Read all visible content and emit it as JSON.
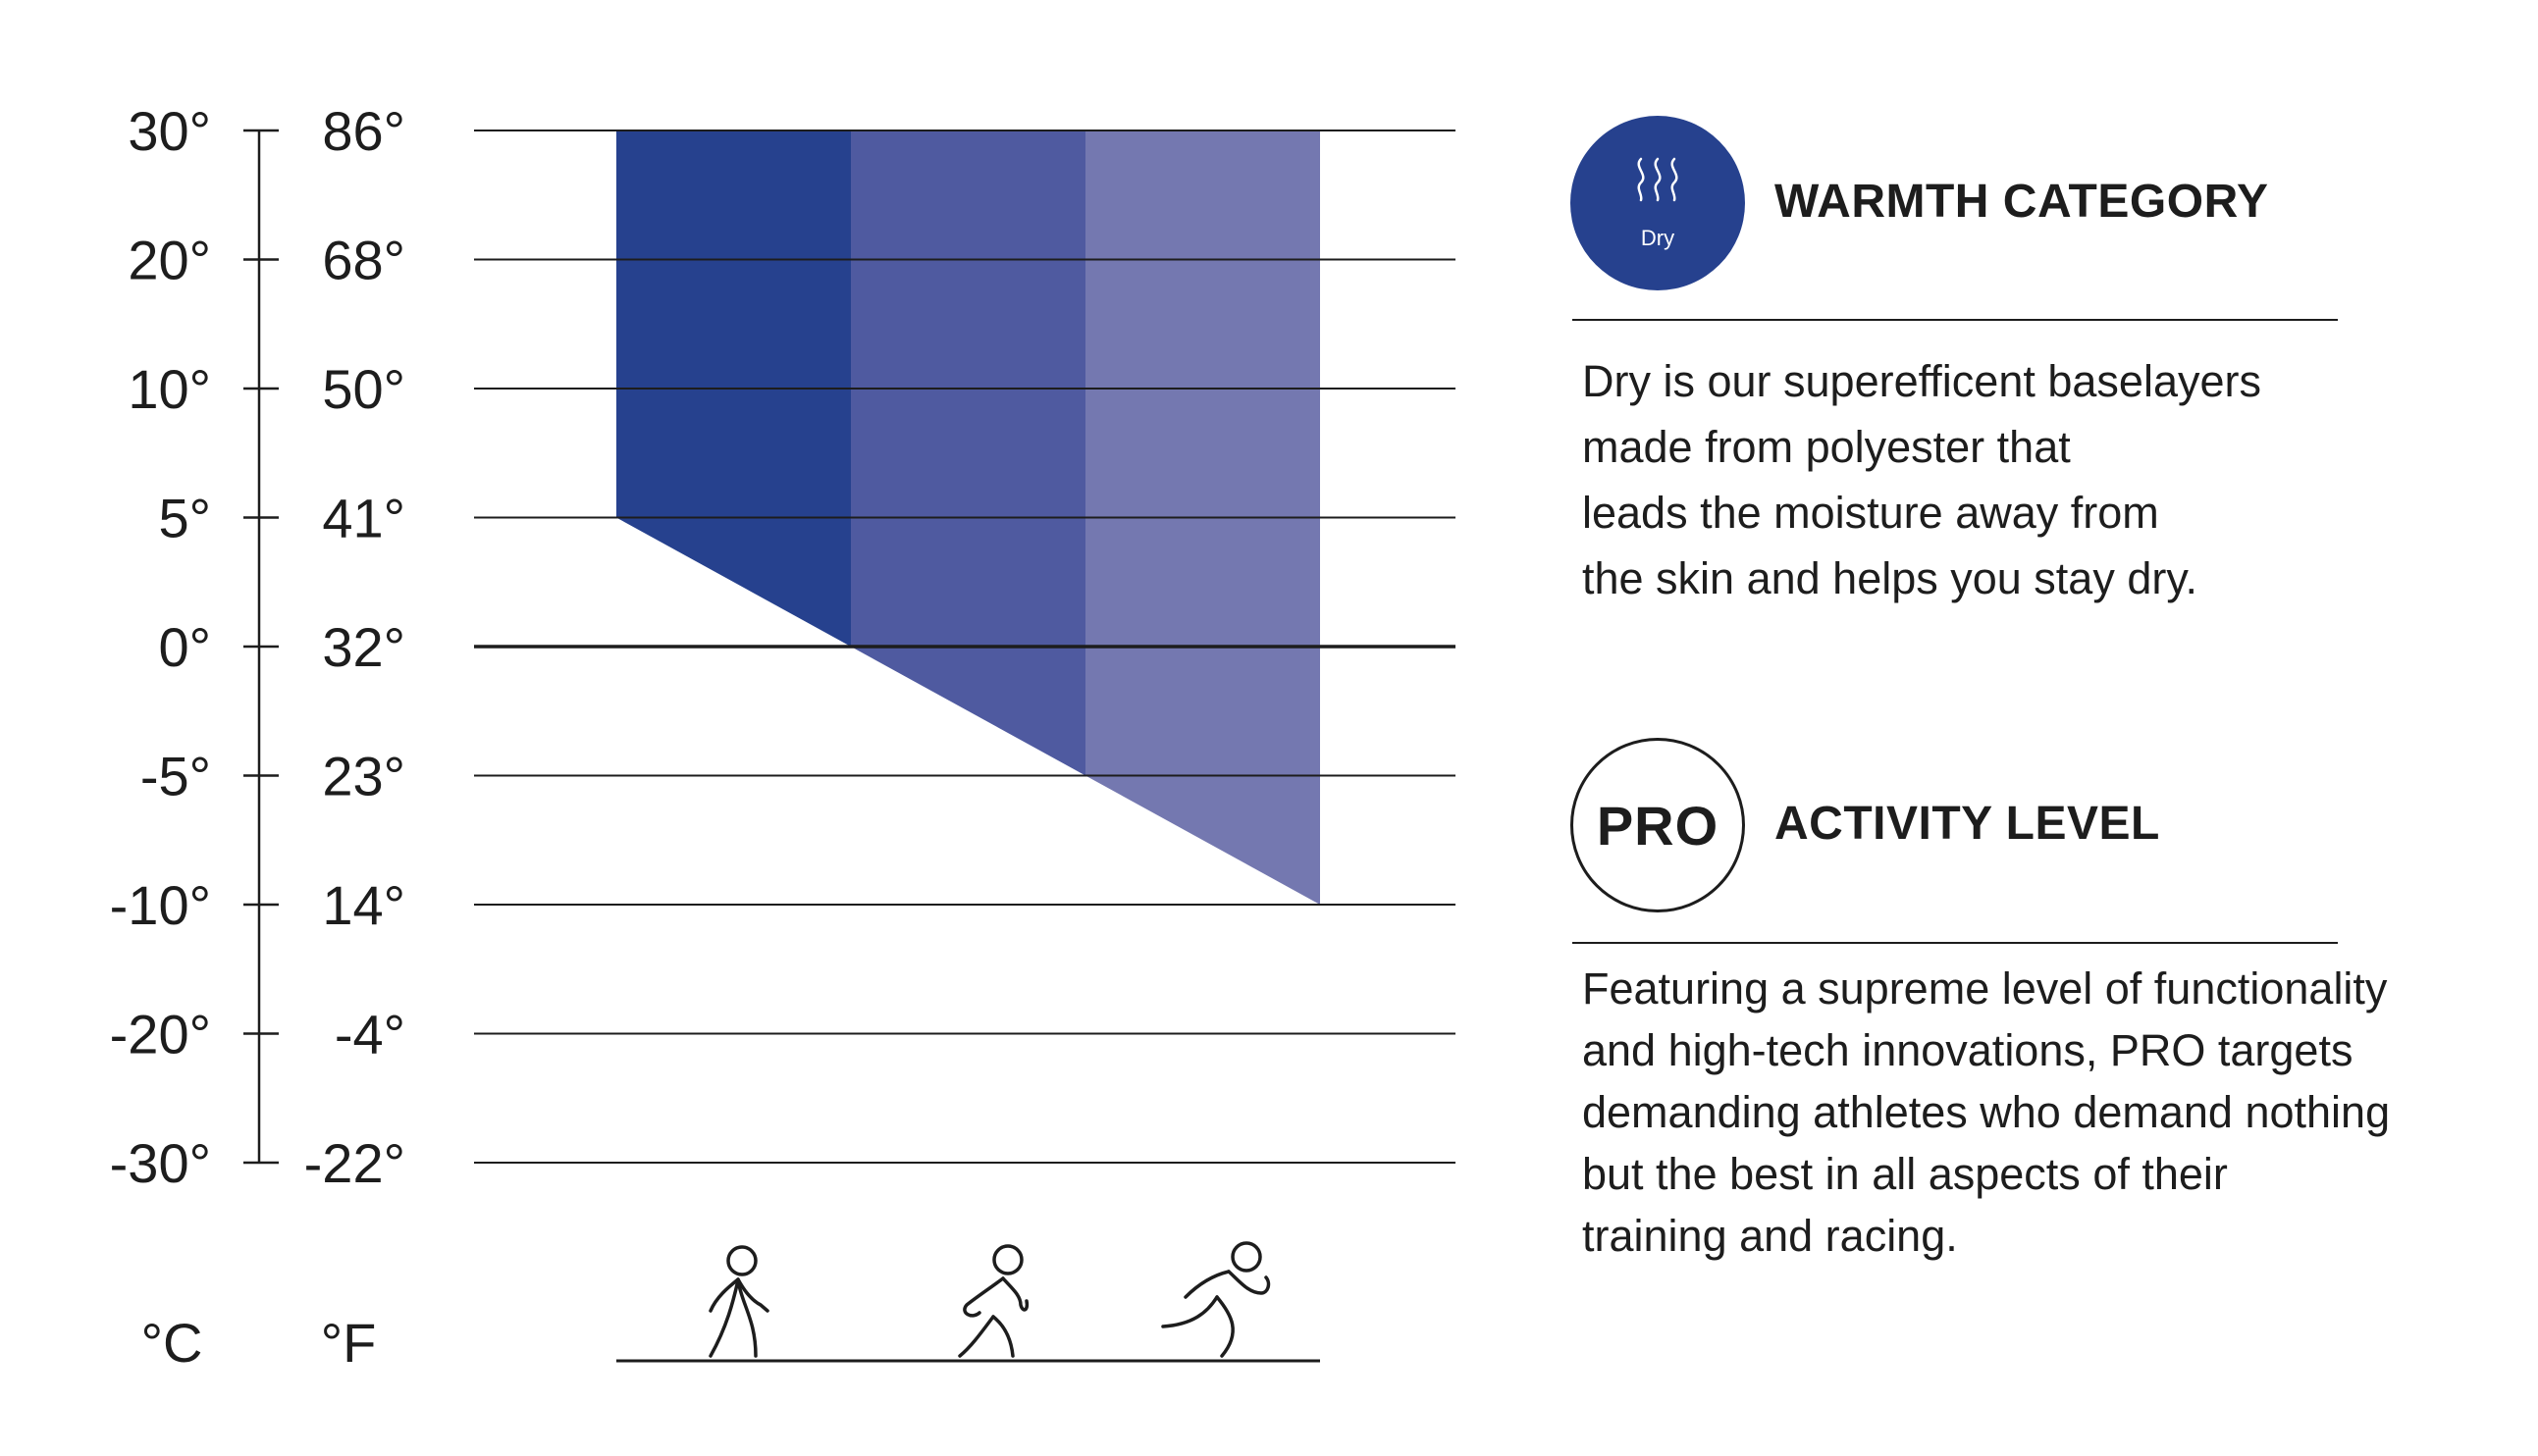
{
  "chart_data": {
    "type": "area",
    "celsius_ticks": [
      "30°",
      "20°",
      "10°",
      "5°",
      "0°",
      "-5°",
      "-10°",
      "-20°",
      "-30°"
    ],
    "fahrenheit_ticks": [
      "86°",
      "68°",
      "50°",
      "41°",
      "32°",
      "23°",
      "14°",
      "-4°",
      "-22°"
    ],
    "celsius_unit": "°C",
    "fahrenheit_unit": "°F",
    "ylim": [
      -30,
      30
    ],
    "grid": true,
    "series": [
      {
        "activity": "walking",
        "color": "#26418e",
        "min_temp_c_start": 5,
        "min_temp_c_end": 0,
        "max_temp_c": 30
      },
      {
        "activity": "jogging",
        "color": "#4f5aa0",
        "min_temp_c_start": 0,
        "min_temp_c_end": -5,
        "max_temp_c": 30
      },
      {
        "activity": "running",
        "color": "#7478b0",
        "min_temp_c_start": -5,
        "min_temp_c_end": -10,
        "max_temp_c": 30
      }
    ],
    "activity_icons": [
      "walking-person-icon",
      "jogging-person-icon",
      "running-person-icon"
    ]
  },
  "warmth": {
    "badge_label": "Dry",
    "badge_icon": "steam-icon",
    "badge_color": "#26418e",
    "heading": "WARMTH CATEGORY",
    "description": "Dry is our superefficent baselayers\nmade from polyester that\nleads the moisture away from\nthe skin and helps you stay dry."
  },
  "activity": {
    "badge_label": "PRO",
    "heading": "ACTIVITY LEVEL",
    "description": "Featuring a supreme level of functionality\nand high-tech innovations, PRO targets\ndemanding athletes who demand nothing\nbut the best in all aspects of their\ntraining and racing."
  }
}
